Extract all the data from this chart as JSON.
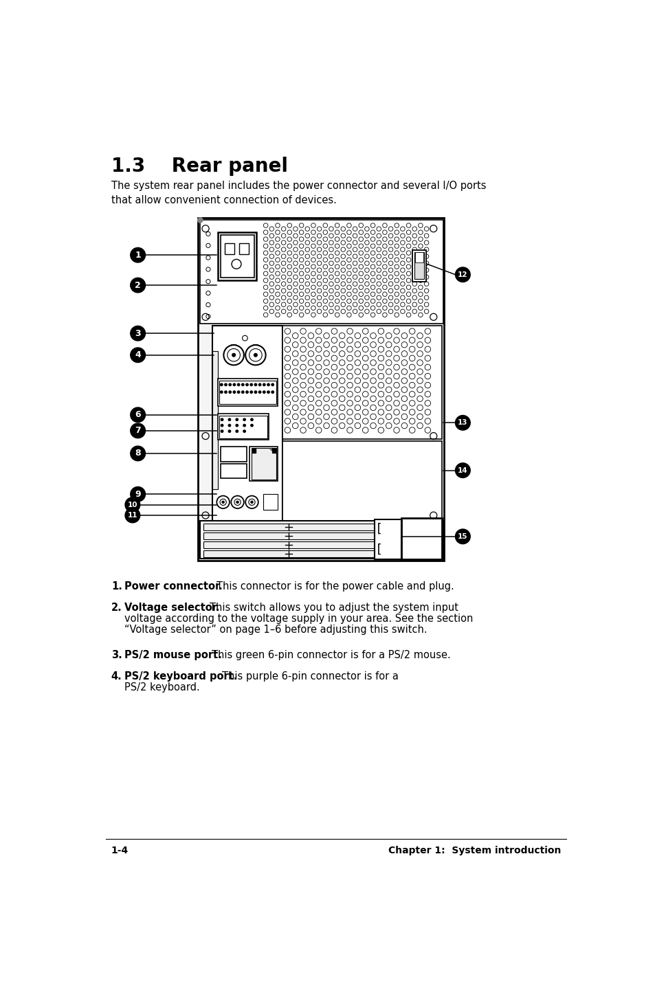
{
  "title": "1.3    Rear panel",
  "subtitle": "The system rear panel includes the power connector and several I/O ports\nthat allow convenient connection of devices.",
  "footer_left": "1-4",
  "footer_right": "Chapter 1:  System introduction",
  "bg_color": "#ffffff",
  "text_color": "#000000",
  "items": [
    {
      "num": "1.",
      "bold": "Power connector.",
      "text": " This connector is for the power cable and plug."
    },
    {
      "num": "2.",
      "bold": "Voltage selector.",
      "text": " This switch allows you to adjust the system input\nvoltage according to the voltage supply in your area. See the section\n“Voltage selector” on page 1-6 before adjusting this switch."
    },
    {
      "num": "3.",
      "bold": "PS/2 mouse port.",
      "text": " This green 6-pin connector is for a PS/2 mouse."
    },
    {
      "num": "4.",
      "bold": "PS/2 keyboard port.",
      "text": " This purple 6-pin connector is for a\nPS/2 keyboard."
    }
  ]
}
